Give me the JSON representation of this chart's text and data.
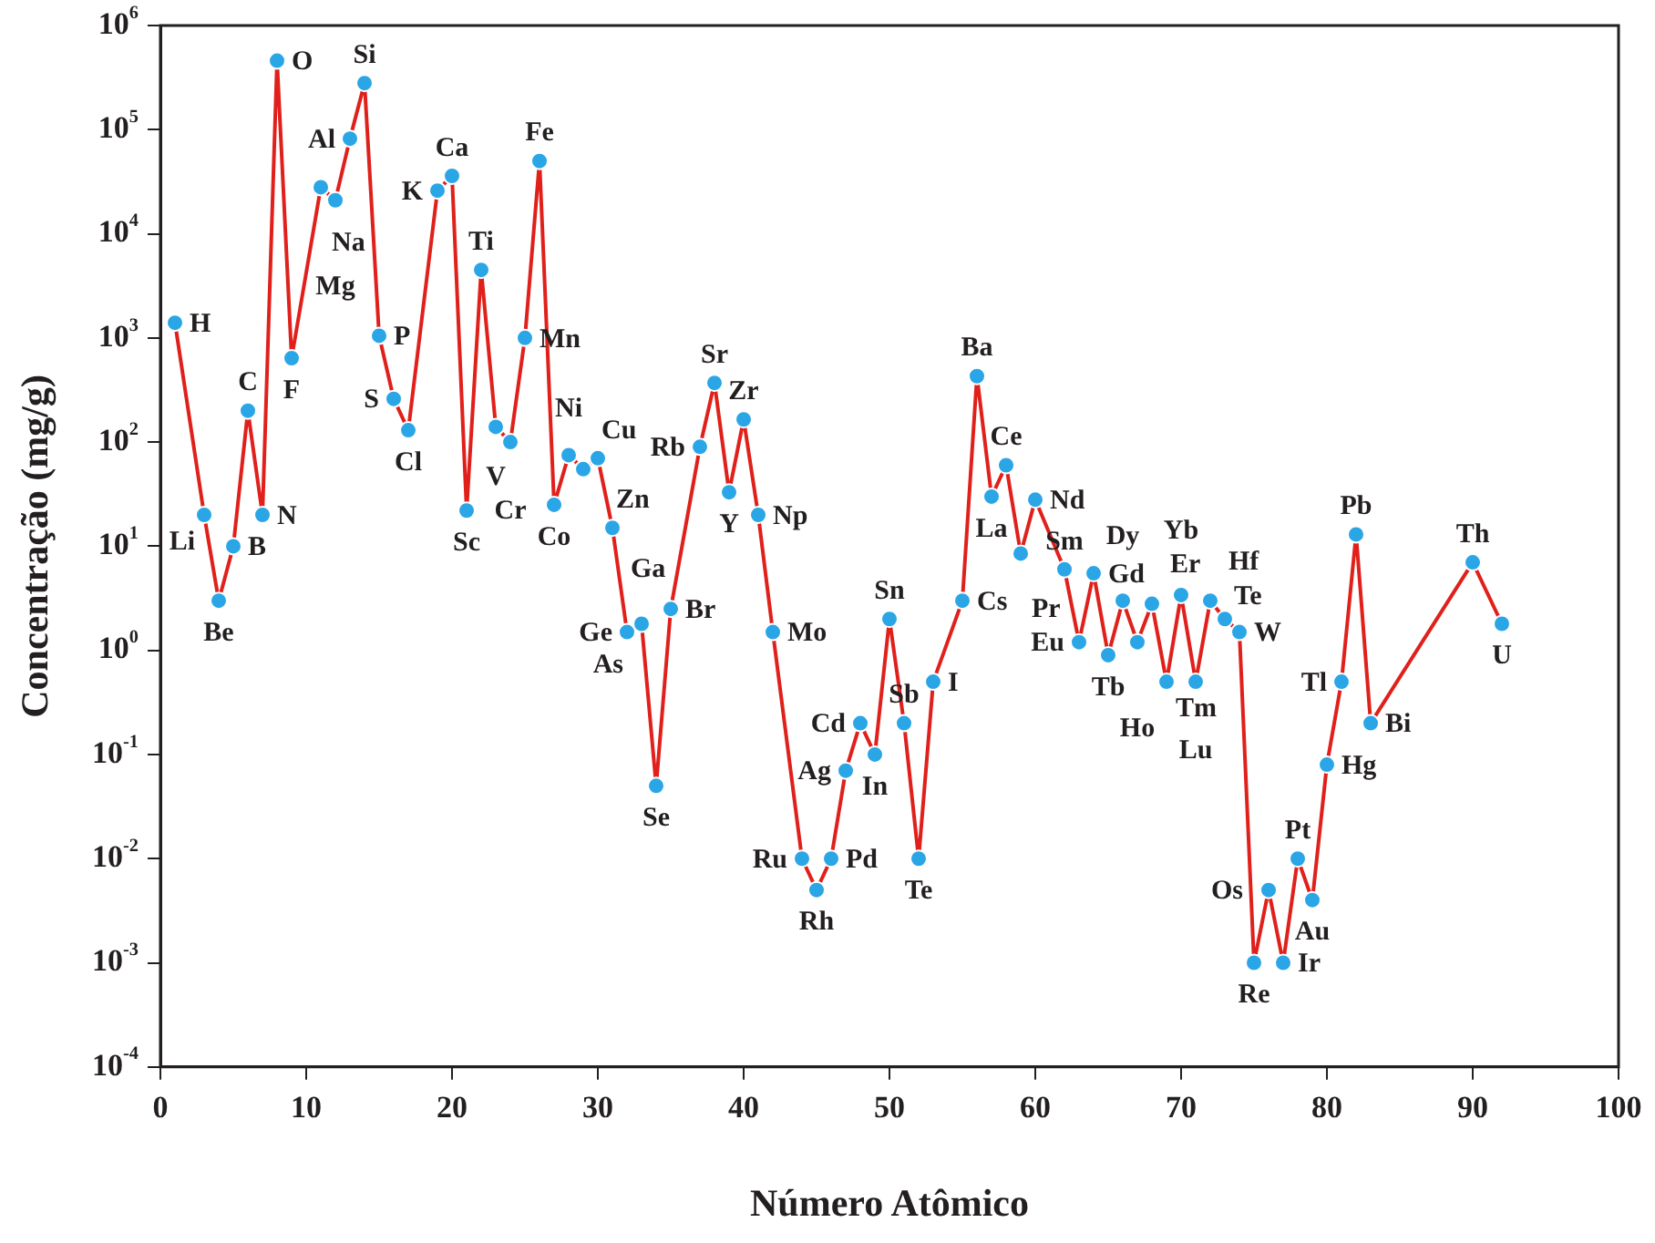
{
  "chart_data": {
    "type": "line",
    "xlabel": "Número Atômico",
    "ylabel": "Concentração (mg/g)",
    "log": "y",
    "grid": false,
    "marker": "circle",
    "line_style": "solid",
    "legend": false,
    "xlim": [
      0,
      100
    ],
    "xticks": [
      0,
      10,
      20,
      30,
      40,
      50,
      60,
      70,
      80,
      90,
      100
    ],
    "ylim": [
      0.0001,
      1000000
    ],
    "yticks": [
      {
        "value": 0.0001,
        "label": "10$^{-4}$"
      },
      {
        "value": 0.001,
        "label": "10$^{-3}$"
      },
      {
        "value": 0.01,
        "label": "10$^{-2}$"
      },
      {
        "value": 0.1,
        "label": "10$^{-1}$"
      },
      {
        "value": 1,
        "label": "10$^{0}$"
      },
      {
        "value": 10,
        "label": "10$^{1}$"
      },
      {
        "value": 100,
        "label": "10$^{2}$"
      },
      {
        "value": 1000,
        "label": "10$^{3}$"
      },
      {
        "value": 10000,
        "label": "10$^{4}$"
      },
      {
        "value": 100000,
        "label": "10$^{5}$"
      },
      {
        "value": 1000000,
        "label": "10$^{6}$"
      }
    ],
    "series": [
      {
        "color": "#e0201b",
        "colors": [
          "#2aa6e6",
          "#2aa6e6",
          "#2aa6e6",
          "#2aa6e6",
          "#2aa6e6",
          "#2aa6e6",
          "#2aa6e6",
          "#2aa6e6",
          "#2aa6e6",
          "#2aa6e6",
          "#2aa6e6",
          "#2aa6e6",
          "#2aa6e6",
          "#2aa6e6",
          "#2aa6e6",
          "#2aa6e6",
          "#2aa6e6",
          "#2aa6e6",
          "#2aa6e6",
          "#2aa6e6",
          "#2aa6e6",
          "#2aa6e6",
          "#2aa6e6",
          "#2aa6e6",
          "#2aa6e6",
          "#2aa6e6",
          "#2aa6e6",
          "#2aa6e6",
          "#2aa6e6",
          "#2aa6e6",
          "#2aa6e6",
          "#2aa6e6",
          "#2aa6e6",
          "#2aa6e6",
          "#2aa6e6",
          "#2aa6e6",
          "#2aa6e6",
          "#2aa6e6",
          "#2aa6e6",
          "#2aa6e6",
          "#2aa6e6",
          "#2aa6e6",
          "#2aa6e6",
          "#2aa6e6",
          "#2aa6e6",
          "#2aa6e6",
          "#2aa6e6",
          "#2aa6e6",
          "#2aa6e6",
          "#2aa6e6",
          "#2aa6e6",
          "#2aa6e6",
          "#2aa6e6",
          "#2aa6e6",
          "#2aa6e6",
          "#2aa6e6",
          "#2aa6e6",
          "#2aa6e6",
          "#2aa6e6",
          "#2aa6e6",
          "#2aa6e6",
          "#2aa6e6",
          "#2aa6e6",
          "#2aa6e6",
          "#2aa6e6",
          "#2aa6e6",
          "#2aa6e6",
          "#2aa6e6",
          "#2aa6e6",
          "#2aa6e6",
          "#2aa6e6",
          "#2aa6e6",
          "#2aa6e6",
          "#2aa6e6",
          "#2aa6e6",
          "#2aa6e6",
          "#2aa6e6",
          "#2aa6e6"
        ],
        "x": [
          1,
          3,
          4,
          5,
          6,
          7,
          8,
          9,
          11,
          12,
          13,
          14,
          15,
          16,
          17,
          19,
          20,
          21,
          22,
          23,
          24,
          25,
          26,
          27,
          28,
          29,
          30,
          31,
          32,
          33,
          34,
          35,
          37,
          38,
          39,
          40,
          41,
          42,
          44,
          45,
          46,
          47,
          48,
          49,
          50,
          51,
          52,
          53,
          55,
          56,
          57,
          58,
          59,
          60,
          62,
          63,
          64,
          65,
          66,
          67,
          68,
          69,
          70,
          71,
          72,
          73,
          74,
          75,
          76,
          77,
          78,
          79,
          80,
          81,
          82,
          83,
          90,
          92
        ],
        "values": [
          1400,
          20,
          3,
          10,
          200,
          20,
          460000,
          640,
          28000,
          21000,
          82000,
          280000,
          1050,
          260,
          130,
          26000,
          36000,
          22,
          4500,
          140,
          100,
          1000,
          50000,
          25,
          75,
          55,
          70,
          15,
          1.5,
          1.8,
          0.05,
          2.5,
          90,
          370,
          33,
          165,
          20,
          1.5,
          0.01,
          0.005,
          0.01,
          0.07,
          0.2,
          0.1,
          2,
          0.2,
          0.01,
          0.5,
          3,
          430,
          30,
          60,
          8.5,
          28,
          6,
          1.2,
          5.5,
          0.9,
          3,
          1.2,
          2.8,
          0.5,
          3.4,
          0.5,
          3,
          2,
          1.5,
          0.001,
          0.005,
          0.001,
          0.01,
          0.004,
          0.08,
          0.5,
          13,
          0.2,
          7,
          1.8
        ]
      }
    ],
    "annotations": [
      {
        "text": "H",
        "x": 1,
        "y": 1400
      },
      {
        "text": "Li",
        "x": 3,
        "y": 20
      },
      {
        "text": "Be",
        "x": 4,
        "y": 3
      },
      {
        "text": "B",
        "x": 5,
        "y": 10
      },
      {
        "text": "C",
        "x": 6,
        "y": 200
      },
      {
        "text": "N",
        "x": 7,
        "y": 20
      },
      {
        "text": "O",
        "x": 8,
        "y": 460000
      },
      {
        "text": "F",
        "x": 9,
        "y": 640
      },
      {
        "text": "Na",
        "x": 11,
        "y": 28000
      },
      {
        "text": "Mg",
        "x": 12,
        "y": 21000
      },
      {
        "text": "Al",
        "x": 13,
        "y": 82000
      },
      {
        "text": "Si",
        "x": 14,
        "y": 280000
      },
      {
        "text": "P",
        "x": 15,
        "y": 1050
      },
      {
        "text": "S",
        "x": 16,
        "y": 260
      },
      {
        "text": "Cl",
        "x": 17,
        "y": 130
      },
      {
        "text": "K",
        "x": 19,
        "y": 26000
      },
      {
        "text": "Ca",
        "x": 20,
        "y": 36000
      },
      {
        "text": "Sc",
        "x": 21,
        "y": 22
      },
      {
        "text": "Ti",
        "x": 22,
        "y": 4500
      },
      {
        "text": "V",
        "x": 23,
        "y": 140
      },
      {
        "text": "Cr",
        "x": 24,
        "y": 100
      },
      {
        "text": "Mn",
        "x": 25,
        "y": 1000
      },
      {
        "text": "Fe",
        "x": 26,
        "y": 50000
      },
      {
        "text": "Co",
        "x": 27,
        "y": 25
      },
      {
        "text": "Ni",
        "x": 28,
        "y": 75
      },
      {
        "text": "Cu",
        "x": 29,
        "y": 55
      },
      {
        "text": "Zn",
        "x": 30,
        "y": 70
      },
      {
        "text": "Ga",
        "x": 31,
        "y": 15
      },
      {
        "text": "Ge",
        "x": 32,
        "y": 1.5
      },
      {
        "text": "As",
        "x": 33,
        "y": 1.8
      },
      {
        "text": "Se",
        "x": 34,
        "y": 0.05
      },
      {
        "text": "Br",
        "x": 35,
        "y": 2.5
      },
      {
        "text": "Rb",
        "x": 37,
        "y": 90
      },
      {
        "text": "Sr",
        "x": 38,
        "y": 370
      },
      {
        "text": "Y",
        "x": 39,
        "y": 33
      },
      {
        "text": "Zr",
        "x": 40,
        "y": 165
      },
      {
        "text": "Np",
        "x": 41,
        "y": 20
      },
      {
        "text": "Mo",
        "x": 42,
        "y": 1.5
      },
      {
        "text": "Ru",
        "x": 44,
        "y": 0.01
      },
      {
        "text": "Rh",
        "x": 45,
        "y": 0.005
      },
      {
        "text": "Pd",
        "x": 46,
        "y": 0.01
      },
      {
        "text": "Ag",
        "x": 47,
        "y": 0.07
      },
      {
        "text": "Cd",
        "x": 48,
        "y": 0.2
      },
      {
        "text": "In",
        "x": 49,
        "y": 0.1
      },
      {
        "text": "Sn",
        "x": 50,
        "y": 2
      },
      {
        "text": "Sb",
        "x": 51,
        "y": 0.2
      },
      {
        "text": "Te",
        "x": 52,
        "y": 0.01
      },
      {
        "text": "I",
        "x": 53,
        "y": 0.5
      },
      {
        "text": "Cs",
        "x": 55,
        "y": 3
      },
      {
        "text": "Ba",
        "x": 56,
        "y": 430
      },
      {
        "text": "La",
        "x": 57,
        "y": 30
      },
      {
        "text": "Ce",
        "x": 58,
        "y": 60
      },
      {
        "text": "Pr",
        "x": 59,
        "y": 8.5
      },
      {
        "text": "Nd",
        "x": 60,
        "y": 28
      },
      {
        "text": "Sm",
        "x": 62,
        "y": 6
      },
      {
        "text": "Eu",
        "x": 63,
        "y": 1.2
      },
      {
        "text": "Gd",
        "x": 64,
        "y": 5.5
      },
      {
        "text": "Tb",
        "x": 65,
        "y": 0.9
      },
      {
        "text": "Dy",
        "x": 66,
        "y": 3
      },
      {
        "text": "Ho",
        "x": 67,
        "y": 1.2
      },
      {
        "text": "Er",
        "x": 68,
        "y": 2.8
      },
      {
        "text": "Tm",
        "x": 69,
        "y": 0.5
      },
      {
        "text": "Yb",
        "x": 70,
        "y": 3.4
      },
      {
        "text": "Lu",
        "x": 71,
        "y": 0.5
      },
      {
        "text": "Hf",
        "x": 72,
        "y": 3
      },
      {
        "text": "Te",
        "x": 73,
        "y": 2
      },
      {
        "text": "W",
        "x": 74,
        "y": 1.5
      },
      {
        "text": "Re",
        "x": 75,
        "y": 0.001
      },
      {
        "text": "Os",
        "x": 76,
        "y": 0.005
      },
      {
        "text": "Ir",
        "x": 77,
        "y": 0.001
      },
      {
        "text": "Pt",
        "x": 78,
        "y": 0.01
      },
      {
        "text": "Au",
        "x": 79,
        "y": 0.004
      },
      {
        "text": "Hg",
        "x": 80,
        "y": 0.08
      },
      {
        "text": "Tl",
        "x": 81,
        "y": 0.5
      },
      {
        "text": "Pb",
        "x": 82,
        "y": 13
      },
      {
        "text": "Bi",
        "x": 83,
        "y": 0.2
      },
      {
        "text": "Th",
        "x": 90,
        "y": 7
      },
      {
        "text": "U",
        "x": 92,
        "y": 1.8
      }
    ]
  }
}
